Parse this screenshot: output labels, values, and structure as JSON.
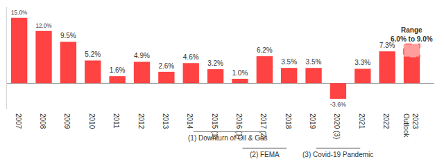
{
  "chart_data": {
    "type": "bar",
    "categories": [
      "2007",
      "2008",
      "2009",
      "2010",
      "2011",
      "2012",
      "2013",
      "2014",
      "2015 (1)",
      "2016 (1)",
      "2017 (2)",
      "2018",
      "2019",
      "2020 (3)",
      "2021",
      "2022",
      "2023 Outlook"
    ],
    "values": [
      15.0,
      12.0,
      9.5,
      5.2,
      1.6,
      4.9,
      2.6,
      4.6,
      3.2,
      1.0,
      6.2,
      3.5,
      3.5,
      -3.6,
      3.3,
      7.3,
      6.0
    ],
    "value_labels": [
      "15.0%",
      "12.0%",
      "9.5%",
      "5.2%",
      "1.6%",
      "4.9%",
      "2.6%",
      "4.6%",
      "3.2%",
      "1.0%",
      "6.2%",
      "3.5%",
      "3.5%",
      "-3.6%",
      "3.3%",
      "7.3%",
      null
    ],
    "color": "#ff4242",
    "data_labels": true,
    "tick_labels": "x",
    "grid": false,
    "ylim": [
      -6,
      17.5
    ],
    "range": {
      "category": "2023 Outlook",
      "low": 6.0,
      "high": 9.0,
      "color": "#ff9c9c",
      "line_style": "dashed",
      "label": [
        "Range",
        "6.0% to 9.0%"
      ]
    },
    "groups": [
      {
        "label": "(1) Downturn of Oil & Gas",
        "categories": [
          "2015 (1)",
          "2016 (1)"
        ]
      },
      {
        "label": "(2) FEMA",
        "categories": [
          "2017 (2)"
        ]
      },
      {
        "label": "(3) Covid-19 Pandemic",
        "categories": [
          "2020 (3)"
        ]
      }
    ]
  }
}
